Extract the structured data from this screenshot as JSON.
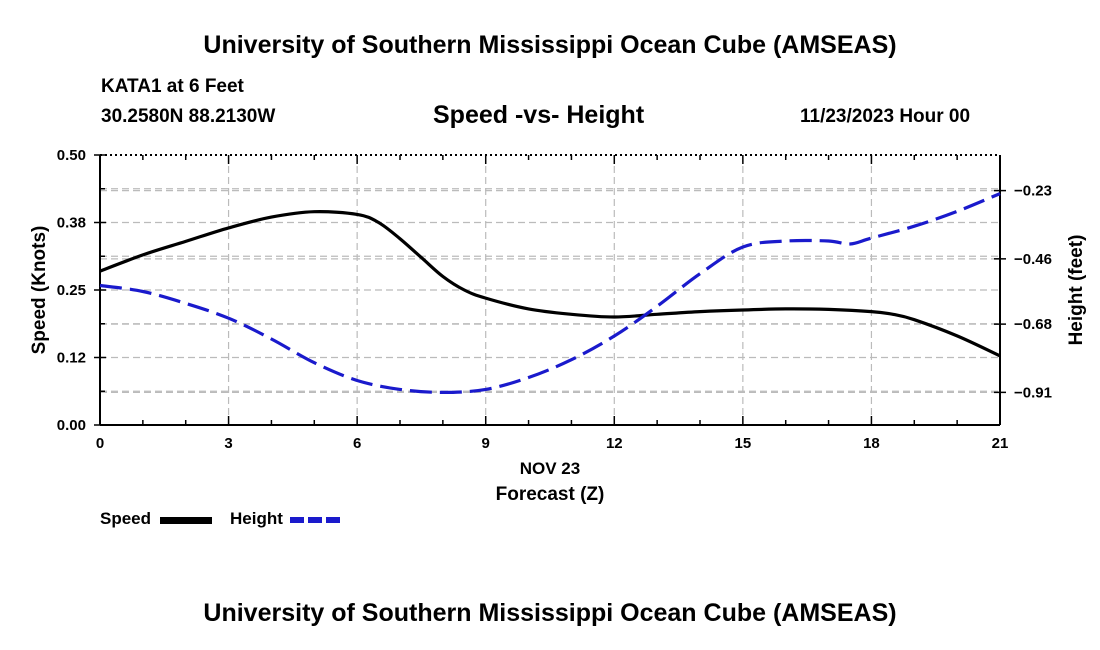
{
  "header": {
    "title": "University of Southern Mississippi Ocean Cube (AMSEAS)",
    "station": "KATA1 at 6 Feet",
    "coords": "30.2580N  88.2130W",
    "chart_title": "Speed -vs- Height",
    "datetime": "11/23/2023 Hour 00"
  },
  "footer": {
    "title": "University of Southern Mississippi Ocean Cube (AMSEAS)"
  },
  "legend": {
    "speed_label": "Speed",
    "height_label": "Height"
  },
  "colors": {
    "speed": "#000000",
    "height": "#1a1acc",
    "grid": "#bbbbbb"
  },
  "chart_data": {
    "type": "line",
    "title": "Speed -vs- Height",
    "xlabel": "Forecast (Z)",
    "xlabel_top": "NOV 23",
    "ylabel": "Speed (Knots)",
    "y2label": "Height (feet)",
    "xlim": [
      0,
      21
    ],
    "ylim": [
      0,
      0.5
    ],
    "y2lim": [
      -1.02,
      -0.11
    ],
    "x_ticks": [
      0,
      3,
      6,
      9,
      12,
      15,
      18,
      21
    ],
    "x_tick_labels": [
      "0",
      "3",
      "6",
      "9",
      "12",
      "15",
      "18",
      "21"
    ],
    "y_ticks": [
      0,
      0.125,
      0.25,
      0.375,
      0.5
    ],
    "y_tick_labels": [
      "0.00",
      "0.12",
      "0.25",
      "0.38",
      "0.50"
    ],
    "y2_ticks": [
      -0.91,
      -0.68,
      -0.46,
      -0.23
    ],
    "y2_tick_labels": [
      "-0.91",
      "-0.68",
      "-0.46",
      "-0.23"
    ],
    "grid": true,
    "series": [
      {
        "name": "Speed",
        "axis": "left",
        "style": "solid",
        "x": [
          0,
          1,
          2,
          3,
          4,
          5,
          6,
          6.5,
          7,
          7.5,
          8,
          8.5,
          9,
          10,
          11,
          12,
          13,
          14,
          15,
          16,
          17,
          18,
          18.5,
          19,
          20,
          21
        ],
        "values": [
          0.285,
          0.315,
          0.34,
          0.365,
          0.385,
          0.395,
          0.39,
          0.375,
          0.345,
          0.31,
          0.275,
          0.25,
          0.235,
          0.215,
          0.205,
          0.2,
          0.205,
          0.21,
          0.213,
          0.215,
          0.214,
          0.21,
          0.205,
          0.195,
          0.165,
          0.128
        ]
      },
      {
        "name": "Height",
        "axis": "right",
        "style": "dashed",
        "x": [
          0,
          1,
          2,
          3,
          4,
          5,
          6,
          7,
          8,
          9,
          10,
          11,
          12,
          13,
          14,
          15,
          16,
          17,
          17.5,
          18,
          19,
          20,
          21
        ],
        "values": [
          -0.55,
          -0.57,
          -0.61,
          -0.66,
          -0.73,
          -0.81,
          -0.87,
          -0.9,
          -0.91,
          -0.9,
          -0.86,
          -0.8,
          -0.72,
          -0.62,
          -0.51,
          -0.42,
          -0.4,
          -0.4,
          -0.41,
          -0.39,
          -0.35,
          -0.3,
          -0.24
        ]
      }
    ]
  }
}
